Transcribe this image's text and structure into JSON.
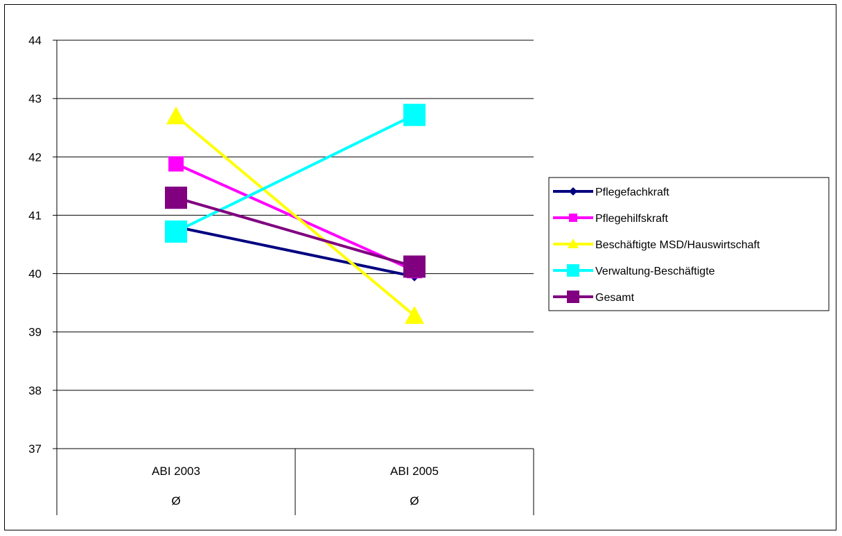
{
  "chart_data": {
    "type": "line",
    "categories": [
      "ABI 2003",
      "ABI 2005"
    ],
    "category_sub": [
      "Ø",
      "Ø"
    ],
    "ylim": [
      37,
      44
    ],
    "yticks": [
      37,
      38,
      39,
      40,
      41,
      42,
      43,
      44
    ],
    "grid": "horizontal",
    "legend": "right",
    "series": [
      {
        "name": "Pflegefachkraft",
        "values": [
          40.8,
          39.95
        ],
        "color": "#000080",
        "marker": "diamond"
      },
      {
        "name": "Pflegehilfskraft",
        "values": [
          41.88,
          40.05
        ],
        "color": "#ff00ff",
        "marker": "square"
      },
      {
        "name": "Beschäftigte MSD/Hauswirtschaft",
        "values": [
          42.7,
          39.28
        ],
        "color": "#ffff00",
        "marker": "triangle"
      },
      {
        "name": "Verwaltung-Beschäftigte",
        "values": [
          40.72,
          42.72
        ],
        "color": "#00ffff",
        "marker": "square-large"
      },
      {
        "name": "Gesamt",
        "values": [
          41.3,
          40.12
        ],
        "color": "#800080",
        "marker": "square-large"
      }
    ]
  }
}
